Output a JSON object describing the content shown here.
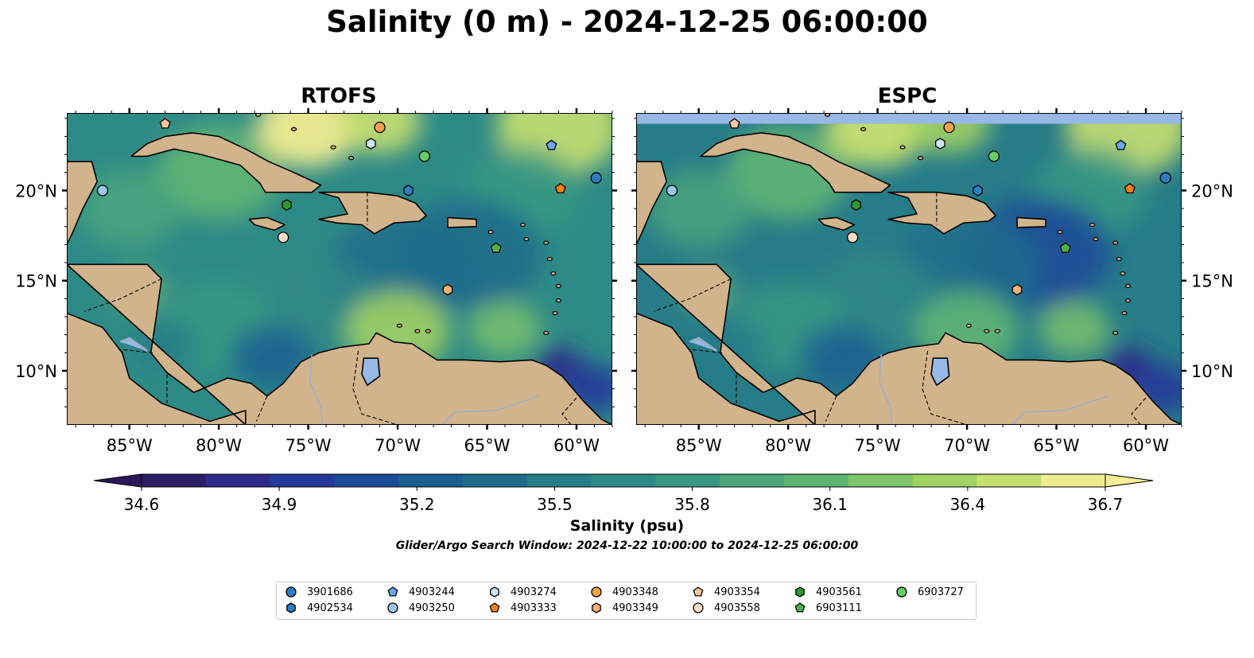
{
  "title": "Salinity (0 m) - 2024-12-25 06:00:00",
  "panels": [
    {
      "title": "RTOFS"
    },
    {
      "title": "ESPC"
    }
  ],
  "axes": {
    "lon_ticks": [
      "85°W",
      "80°W",
      "75°W",
      "70°W",
      "65°W",
      "60°W"
    ],
    "lat_ticks": [
      "20°N",
      "15°N",
      "10°N"
    ]
  },
  "colorbar": {
    "label": "Salinity (psu)",
    "ticks": [
      "34.6",
      "34.9",
      "35.2",
      "35.5",
      "35.8",
      "36.1",
      "36.4",
      "36.7"
    ],
    "range": [
      34.6,
      36.7
    ],
    "colors": [
      "#2c1e66",
      "#2e2a8a",
      "#24399a",
      "#1c4c98",
      "#1a5e92",
      "#1c6d8c",
      "#267c88",
      "#2e8a86",
      "#3a9882",
      "#4aa77c",
      "#5fb574",
      "#7ec46a",
      "#a0d264",
      "#c8e070",
      "#f0ec90"
    ]
  },
  "search_window": "Glider/Argo Search Window: 2024-12-22 10:00:00 to 2024-12-25 06:00:00",
  "map_colors": {
    "land": "#d2b48c",
    "water_body": "#98b8e6",
    "pacific": "#2c1e66"
  },
  "floats": [
    {
      "id": "3901686",
      "shape": "circle",
      "color": "#2a7fc2",
      "lon": -58.9,
      "lat": 20.7
    },
    {
      "id": "4902534",
      "shape": "hexagon",
      "color": "#2a7fc2",
      "lon": -69.4,
      "lat": 20.0
    },
    {
      "id": "4903244",
      "shape": "pentagon",
      "color": "#6aa8e8",
      "lon": -61.4,
      "lat": 22.5
    },
    {
      "id": "4903250",
      "shape": "circle",
      "color": "#9ac8ee",
      "lon": -86.5,
      "lat": 20.0
    },
    {
      "id": "4903274",
      "shape": "hexagon",
      "color": "#cfe6fa",
      "lon": -71.5,
      "lat": 22.6
    },
    {
      "id": "4903333",
      "shape": "pentagon",
      "color": "#ff7f0e",
      "lon": -60.9,
      "lat": 20.1
    },
    {
      "id": "4903348",
      "shape": "circle",
      "color": "#f5a04a",
      "lon": -71.0,
      "lat": 23.5
    },
    {
      "id": "4903349",
      "shape": "hexagon",
      "color": "#f9b070",
      "lon": -67.2,
      "lat": 14.5
    },
    {
      "id": "4903354",
      "shape": "pentagon",
      "color": "#fcc8a0",
      "lon": -83.0,
      "lat": 23.7
    },
    {
      "id": "4903558",
      "shape": "circle",
      "color": "#fde0c8",
      "lon": -76.4,
      "lat": 17.4
    },
    {
      "id": "4903561",
      "shape": "hexagon",
      "color": "#2c9a2c",
      "lon": -76.2,
      "lat": 19.2
    },
    {
      "id": "6903111",
      "shape": "pentagon",
      "color": "#4cb34c",
      "lon": -64.5,
      "lat": 16.8
    },
    {
      "id": "6903727",
      "shape": "circle",
      "color": "#66cc66",
      "lon": -68.5,
      "lat": 21.9
    }
  ]
}
